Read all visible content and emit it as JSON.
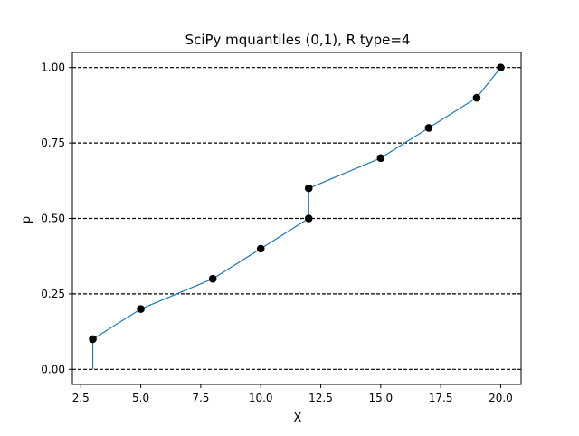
{
  "chart_data": {
    "type": "line",
    "title": "SciPy mquantiles (0,1), R type=4",
    "xlabel": "X",
    "ylabel": "p",
    "xlim": [
      2.15,
      20.85
    ],
    "ylim": [
      -0.05,
      1.05
    ],
    "x_ticks": [
      2.5,
      5.0,
      7.5,
      10.0,
      12.5,
      15.0,
      17.5,
      20.0
    ],
    "x_tick_labels": [
      "2.5",
      "5.0",
      "7.5",
      "10.0",
      "12.5",
      "15.0",
      "17.5",
      "20.0"
    ],
    "y_ticks": [
      0.0,
      0.25,
      0.5,
      0.75,
      1.0
    ],
    "y_tick_labels": [
      "0.00",
      "0.25",
      "0.50",
      "0.75",
      "1.00"
    ],
    "hlines": [
      0.0,
      0.25,
      0.5,
      0.75,
      1.0
    ],
    "grid": false,
    "line": {
      "x": [
        3,
        3,
        5,
        8,
        10,
        12,
        12,
        15,
        17,
        19,
        20
      ],
      "y": [
        0.0,
        0.1,
        0.2,
        0.3,
        0.4,
        0.5,
        0.6,
        0.7,
        0.8,
        0.9,
        1.0
      ]
    },
    "points": {
      "x": [
        3,
        5,
        8,
        10,
        12,
        12,
        15,
        17,
        19,
        20
      ],
      "y": [
        0.1,
        0.2,
        0.3,
        0.4,
        0.5,
        0.6,
        0.7,
        0.8,
        0.9,
        1.0
      ]
    },
    "colors": {
      "line": "#1f77b4",
      "points": "#000000",
      "hlines": "#000000"
    }
  }
}
